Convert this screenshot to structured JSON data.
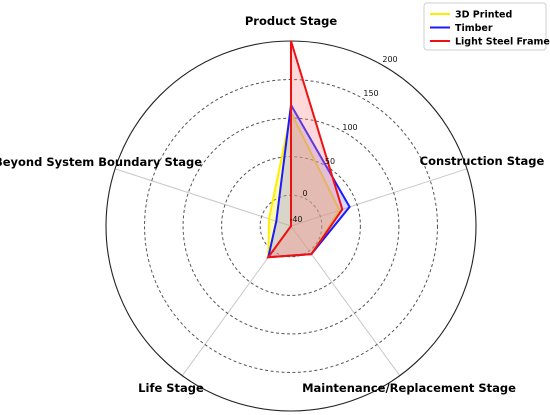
{
  "chart_data": {
    "type": "radar",
    "categories": [
      "Product Stage",
      "Construction Stage",
      "Maintenance/Replacement Stage",
      "Life Stage",
      "Beyond System Boundary Stage"
    ],
    "rlim": [
      -40,
      200
    ],
    "rticks": [
      -40,
      0,
      50,
      100,
      150,
      200
    ],
    "grid": true,
    "legend_position": "top-right",
    "series": [
      {
        "name": "3D Printed",
        "color": "#ffee00",
        "fill": "#ffee00",
        "values": [
          107,
          26,
          5,
          10,
          -10
        ]
      },
      {
        "name": "Timber",
        "color": "#1a1aff",
        "fill": "#8080ff",
        "values": [
          117,
          40,
          5,
          10,
          -20
        ]
      },
      {
        "name": "Light Steel Frame",
        "color": "#ee1111",
        "fill": "#ff8080",
        "values": [
          200,
          30,
          5,
          10,
          -40
        ]
      }
    ]
  }
}
